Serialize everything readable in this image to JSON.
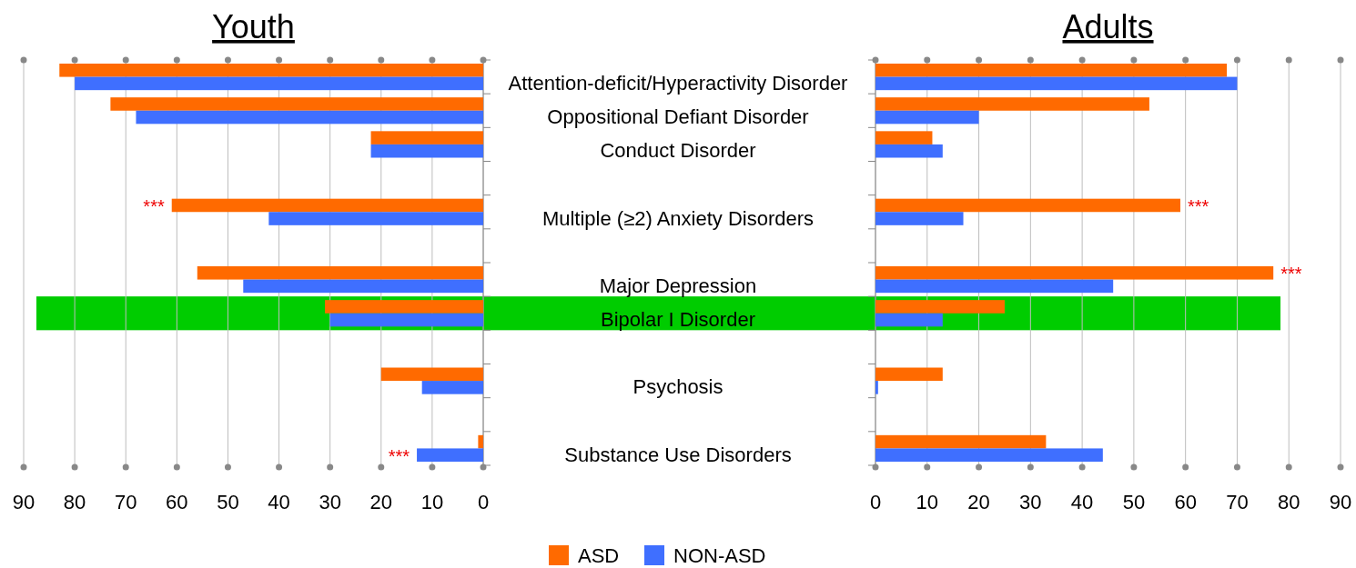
{
  "chart_data": [
    {
      "type": "bar",
      "orientation": "horizontal",
      "title": "Youth",
      "categories": [
        "Attention-deficit/Hyperactivity Disorder",
        "Oppositional Defiant Disorder",
        "Conduct Disorder",
        null,
        "Multiple (≥2) Anxiety Disorders",
        null,
        "Major Depression",
        "Bipolar I Disorder",
        null,
        "Psychosis",
        null,
        "Substance Use Disorders"
      ],
      "series": [
        {
          "color": "#ff6a00",
          "values": [
            83,
            73,
            22,
            null,
            61,
            null,
            56,
            31,
            null,
            20,
            null,
            1
          ]
        },
        {
          "color": "#3f6fff",
          "values": [
            80,
            68,
            22,
            null,
            42,
            null,
            47,
            30,
            null,
            12,
            null,
            13
          ]
        }
      ],
      "xlim": [
        90,
        0
      ],
      "xticks": [
        90,
        80,
        70,
        60,
        50,
        40,
        30,
        20,
        10,
        0
      ],
      "grid": "x",
      "bands": [
        {
          "axis": "y",
          "from": "Bipolar I Disorder",
          "to": "Bipolar I Disorder",
          "color": "#00cc00"
        }
      ],
      "annotations": [
        "***",
        "***"
      ]
    },
    {
      "type": "bar",
      "orientation": "horizontal",
      "title": "Adults",
      "tick_labels": "x",
      "categories": [
        null,
        null,
        null,
        null,
        null,
        null,
        null,
        null,
        null,
        null,
        null,
        null
      ],
      "series": [
        {
          "name": "ASD",
          "color": "#ff6a00",
          "values": [
            68,
            53,
            11,
            null,
            59,
            null,
            77,
            25,
            null,
            13,
            null,
            33
          ]
        },
        {
          "name": "NON-ASD",
          "color": "#3f6fff",
          "values": [
            70,
            20,
            13,
            null,
            17,
            null,
            46,
            13,
            null,
            0.5,
            null,
            44
          ]
        }
      ],
      "xlim": [
        0,
        90
      ],
      "xticks": [
        0,
        10,
        20,
        30,
        40,
        50,
        60,
        70,
        80,
        90
      ],
      "grid": "x",
      "legend": "bottom",
      "annotations": [
        "***",
        "***"
      ]
    }
  ]
}
